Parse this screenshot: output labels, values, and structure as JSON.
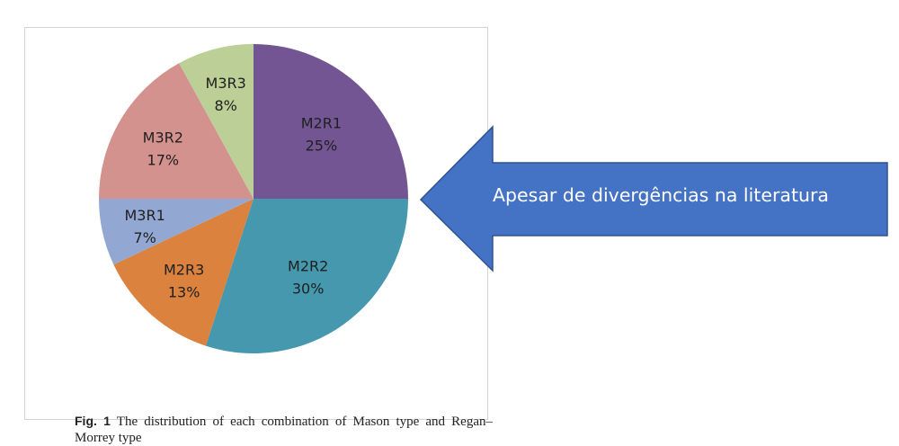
{
  "chart_data": {
    "type": "pie",
    "slices": [
      {
        "label": "M2R1",
        "percent_label": "25%",
        "value": 25,
        "color": "#735593"
      },
      {
        "label": "M2R2",
        "percent_label": "30%",
        "value": 30,
        "color": "#4598ad"
      },
      {
        "label": "M2R3",
        "percent_label": "13%",
        "value": 13,
        "color": "#da823e"
      },
      {
        "label": "M3R1",
        "percent_label": "7%",
        "value": 7,
        "color": "#92a8d3"
      },
      {
        "label": "M3R2",
        "percent_label": "17%",
        "value": 17,
        "color": "#d4928f"
      },
      {
        "label": "M3R3",
        "percent_label": "8%",
        "value": 8,
        "color": "#bbcf96"
      }
    ],
    "start": "12 o'clock",
    "direction": "clockwise",
    "legend": "none"
  },
  "caption": {
    "fig_label": "Fig. 1",
    "text": "The distribution of each combination of Mason type and Regan–Morrey type"
  },
  "arrow": {
    "text": "Apesar de divergências na literatura",
    "color": "#4472c4",
    "direction": "left"
  }
}
